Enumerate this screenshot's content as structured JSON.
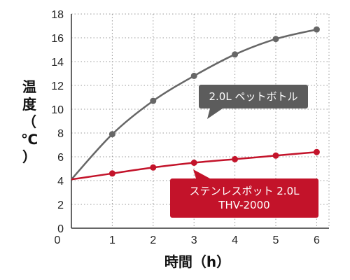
{
  "chart_data": {
    "type": "line",
    "xlabel": "時間（h）",
    "ylabel": "温度（℃）",
    "xlim": [
      0,
      6.4
    ],
    "ylim": [
      0,
      18
    ],
    "x_ticks": [
      0,
      1,
      2,
      3,
      4,
      5,
      6
    ],
    "y_ticks": [
      0,
      2,
      4,
      6,
      8,
      10,
      12,
      14,
      16,
      18
    ],
    "grid": true,
    "series": [
      {
        "name": "2.0L ペットボトル",
        "color": "#666666",
        "x": [
          0,
          1,
          2,
          3,
          4,
          5,
          6
        ],
        "y": [
          4.1,
          7.9,
          10.7,
          12.8,
          14.6,
          15.9,
          16.7
        ]
      },
      {
        "name": "ステンレスポット 2.0L THV-2000",
        "color": "#c3132a",
        "x": [
          0,
          1,
          2,
          3,
          4,
          5,
          6
        ],
        "y": [
          4.1,
          4.6,
          5.1,
          5.5,
          5.8,
          6.1,
          6.4
        ]
      }
    ]
  },
  "labels": {
    "gray_line1": "2.0L ペットボトル",
    "red_line1": "ステンレスポット 2.0L",
    "red_line2": "THV-2000"
  },
  "ylabel_chars": [
    "温",
    "度",
    "（",
    "℃",
    "）"
  ]
}
